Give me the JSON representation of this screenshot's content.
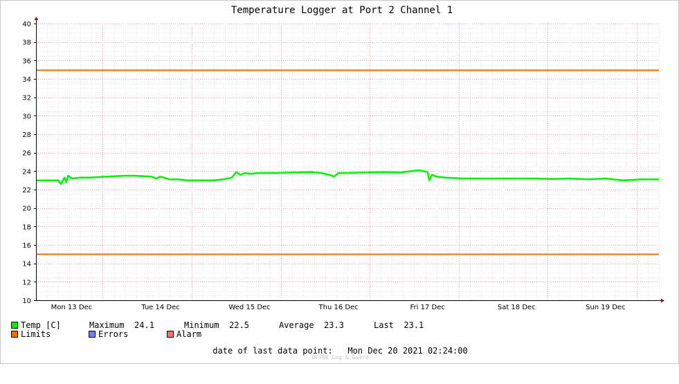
{
  "chart_data": {
    "type": "line",
    "title": "Temperature Logger at Port 2 Channel 1",
    "ylim": [
      10,
      40
    ],
    "yticks": [
      10,
      12,
      14,
      16,
      18,
      20,
      22,
      24,
      26,
      28,
      30,
      32,
      34,
      36,
      38,
      40
    ],
    "x_day_labels": [
      "Mon 13 Dec",
      "Tue 14 Dec",
      "Wed 15 Dec",
      "Thu 16 Dec",
      "Fri 17 Dec",
      "Sat 18 Dec",
      "Sun 19 Dec"
    ],
    "xlim_days": [
      0,
      7.0
    ],
    "grid": true,
    "series": [
      {
        "name": "Temp [C]",
        "color": "#00ee00",
        "x": [
          0.0,
          0.15,
          0.25,
          0.28,
          0.32,
          0.34,
          0.36,
          0.4,
          0.5,
          0.6,
          0.8,
          1.0,
          1.1,
          1.3,
          1.35,
          1.4,
          1.5,
          1.6,
          1.7,
          1.8,
          1.9,
          2.0,
          2.1,
          2.2,
          2.25,
          2.3,
          2.35,
          2.4,
          2.5,
          2.7,
          2.9,
          3.1,
          3.2,
          3.3,
          3.35,
          3.4,
          3.5,
          3.7,
          3.9,
          4.1,
          4.3,
          4.4,
          4.42,
          4.45,
          4.5,
          4.6,
          4.8,
          5.0,
          5.2,
          5.4,
          5.6,
          5.8,
          6.0,
          6.2,
          6.4,
          6.6,
          6.8,
          7.0
        ],
        "y": [
          23.0,
          23.0,
          23.0,
          22.6,
          23.3,
          22.8,
          23.5,
          23.2,
          23.3,
          23.3,
          23.4,
          23.5,
          23.5,
          23.4,
          23.2,
          23.4,
          23.1,
          23.1,
          23.0,
          23.0,
          23.0,
          23.0,
          23.1,
          23.3,
          23.9,
          23.6,
          23.8,
          23.7,
          23.8,
          23.8,
          23.85,
          23.9,
          23.8,
          23.6,
          23.4,
          23.8,
          23.8,
          23.85,
          23.9,
          23.85,
          24.1,
          23.9,
          23.0,
          23.6,
          23.4,
          23.3,
          23.2,
          23.2,
          23.2,
          23.2,
          23.2,
          23.15,
          23.2,
          23.1,
          23.2,
          23.0,
          23.1,
          23.1
        ]
      },
      {
        "name": "Limits",
        "color": "#ee7000",
        "values": [
          35,
          15
        ]
      }
    ]
  },
  "legend": {
    "temp_label": "Temp [C]",
    "maximum_label": "Maximum",
    "maximum_value": "24.1",
    "minimum_label": "Minimum",
    "minimum_value": "22.5",
    "average_label": "Average",
    "average_value": "23.3",
    "last_label": "Last",
    "last_value": "23.1",
    "limits_label": "Limits",
    "errors_label": "Errors",
    "alarm_label": "Alarm",
    "temp_color": "#00ee00",
    "limits_color": "#ee7000",
    "errors_color": "#7080ff",
    "alarm_color": "#ff7070"
  },
  "footer": {
    "last_point_label": "date of last data point:",
    "last_point_value": "Mon Dec 20 2021 02:24:00",
    "watermark": "OCTA8 Log & Guard"
  }
}
